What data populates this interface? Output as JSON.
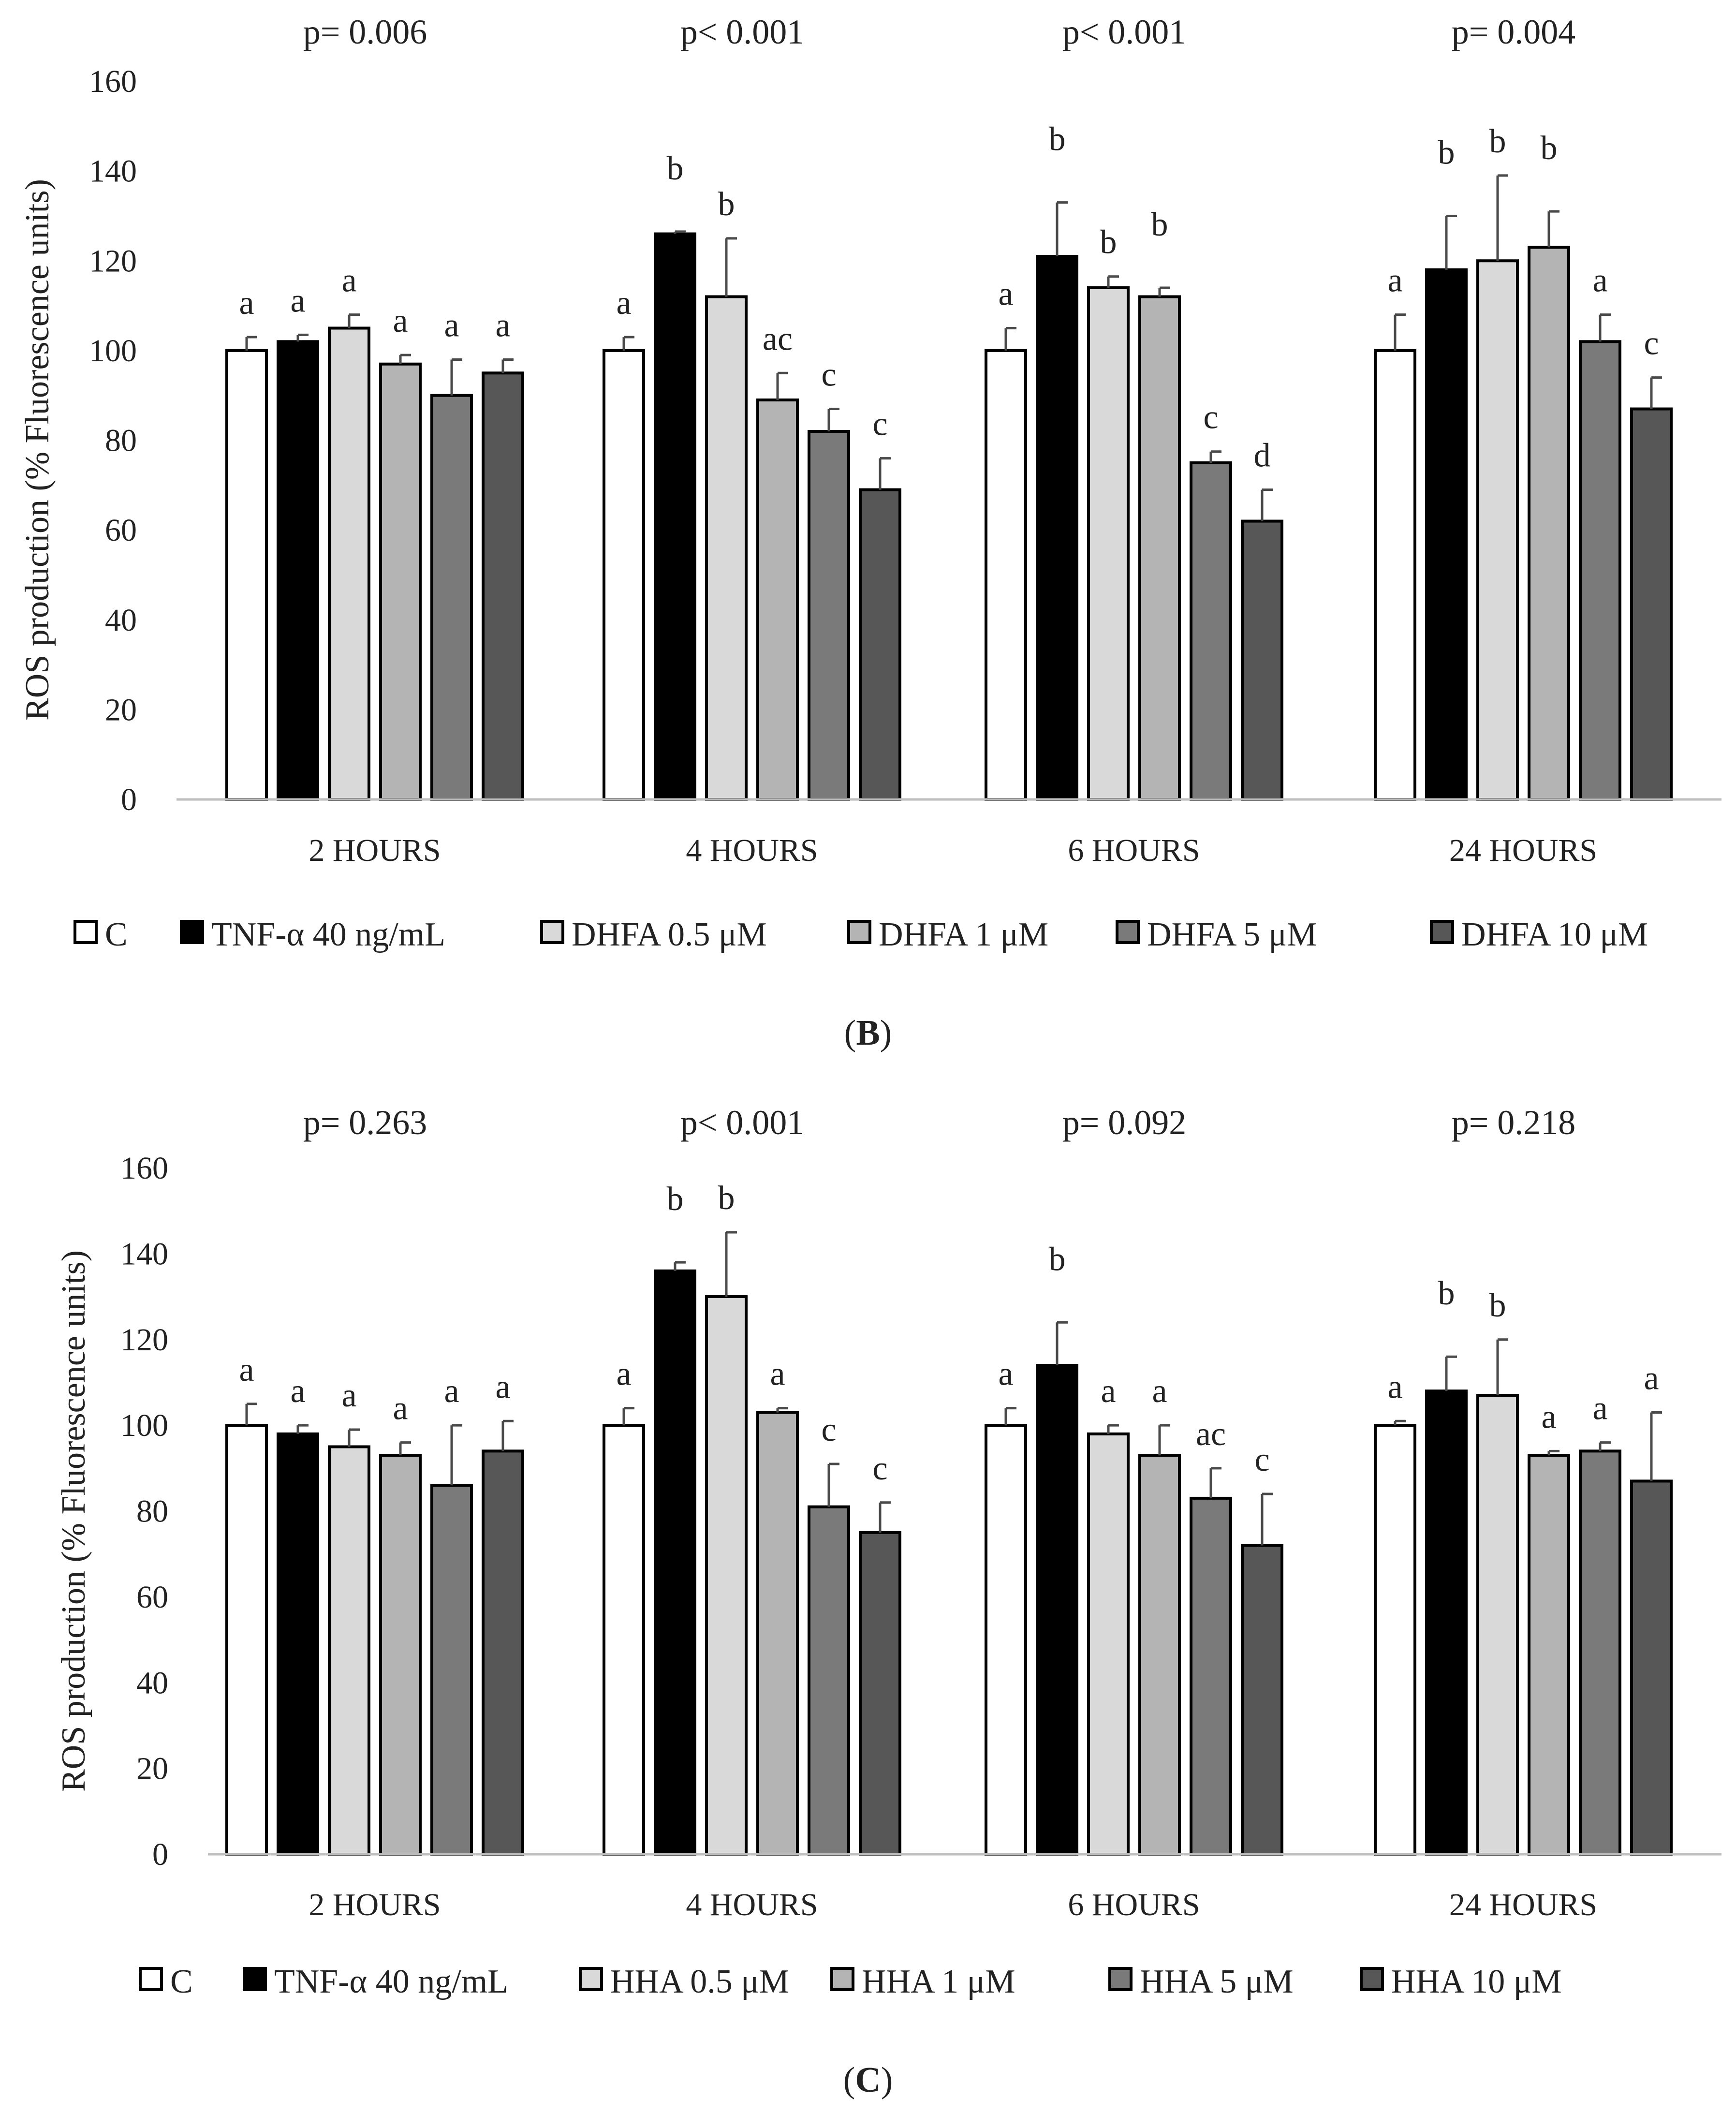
{
  "chart_data": [
    {
      "type": "bar",
      "panel_label": "(B)",
      "panel_letter": "B",
      "ylabel": "ROS production (% Fluorescence units)",
      "xlabel": "",
      "ylim": [
        0,
        160
      ],
      "yticks": [
        "0",
        "20",
        "40",
        "60",
        "80",
        "100",
        "120",
        "140",
        "160"
      ],
      "grid": false,
      "legend_position": "bottom",
      "categories": [
        "2 HOURS",
        "4 HOURS",
        "6 HOURS",
        "24 HOURS"
      ],
      "p_values": [
        "p= 0.006",
        "p< 0.001",
        "p< 0.001",
        "p= 0.004"
      ],
      "series": [
        {
          "name": "C",
          "color": "#ffffff",
          "values": [
            100,
            100,
            100,
            100
          ],
          "errors": [
            3,
            3,
            5,
            8
          ],
          "letters": [
            "a",
            "a",
            "a",
            "a"
          ]
        },
        {
          "name": "TNF-α 40 ng/mL",
          "color": "#000000",
          "values": [
            102,
            126,
            121,
            118
          ],
          "errors": [
            1.5,
            0.5,
            12,
            12
          ],
          "letters": [
            "a",
            "b",
            "b",
            "b"
          ]
        },
        {
          "name": "DHFA 0.5 μM",
          "color": "#d9d9d9",
          "values": [
            105,
            112,
            114,
            120
          ],
          "errors": [
            3,
            13,
            2.5,
            19
          ],
          "letters": [
            "a",
            "b",
            "b",
            "b"
          ]
        },
        {
          "name": "DHFA 1 μM",
          "color": "#b4b4b4",
          "values": [
            97,
            89,
            112,
            123
          ],
          "errors": [
            2,
            6,
            2,
            8
          ],
          "letters": [
            "a",
            "ac",
            "b",
            "b"
          ]
        },
        {
          "name": "DHFA 5 μM",
          "color": "#7a7a7a",
          "values": [
            90,
            82,
            75,
            102
          ],
          "errors": [
            8,
            5,
            2.5,
            6
          ],
          "letters": [
            "a",
            "c",
            "c",
            "a"
          ]
        },
        {
          "name": "DHFA 10 μM",
          "color": "#575757",
          "values": [
            95,
            69,
            62,
            87
          ],
          "errors": [
            3,
            7,
            7,
            7
          ],
          "letters": [
            "a",
            "c",
            "d",
            "c"
          ]
        }
      ]
    },
    {
      "type": "bar",
      "panel_label": "(C)",
      "panel_letter": "C",
      "ylabel": "ROS production (% Fluorescence units)",
      "xlabel": "",
      "ylim": [
        0,
        160
      ],
      "yticks": [
        "0",
        "20",
        "40",
        "60",
        "80",
        "100",
        "120",
        "140",
        "160"
      ],
      "grid": false,
      "legend_position": "bottom",
      "categories": [
        "2 HOURS",
        "4 HOURS",
        "6 HOURS",
        "24 HOURS"
      ],
      "p_values": [
        "p= 0.263",
        "p< 0.001",
        "p= 0.092",
        "p= 0.218"
      ],
      "series": [
        {
          "name": "C",
          "color": "#ffffff",
          "values": [
            100,
            100,
            100,
            100
          ],
          "errors": [
            5,
            4,
            4,
            1
          ],
          "letters": [
            "a",
            "a",
            "a",
            "a"
          ]
        },
        {
          "name": "TNF-α 40 ng/mL",
          "color": "#000000",
          "values": [
            98,
            136,
            114,
            108
          ],
          "errors": [
            2,
            2,
            10,
            8
          ],
          "letters": [
            "a",
            "b",
            "b",
            "b"
          ]
        },
        {
          "name": "HHA 0.5 μM",
          "color": "#d9d9d9",
          "values": [
            95,
            130,
            98,
            107
          ],
          "errors": [
            4,
            15,
            2,
            13
          ],
          "letters": [
            "a",
            "b",
            "a",
            "b"
          ]
        },
        {
          "name": "HHA 1 μM",
          "color": "#b4b4b4",
          "values": [
            93,
            103,
            93,
            93
          ],
          "errors": [
            3,
            1,
            7,
            1
          ],
          "letters": [
            "a",
            "a",
            "a",
            "a"
          ]
        },
        {
          "name": "HHA 5 μM",
          "color": "#7a7a7a",
          "values": [
            86,
            81,
            83,
            94
          ],
          "errors": [
            14,
            10,
            7,
            2
          ],
          "letters": [
            "a",
            "c",
            "ac",
            "a"
          ]
        },
        {
          "name": "HHA 10 μM",
          "color": "#575757",
          "values": [
            94,
            75,
            72,
            87
          ],
          "errors": [
            7,
            7,
            12,
            16
          ],
          "letters": [
            "a",
            "c",
            "c",
            "a"
          ]
        }
      ]
    }
  ]
}
